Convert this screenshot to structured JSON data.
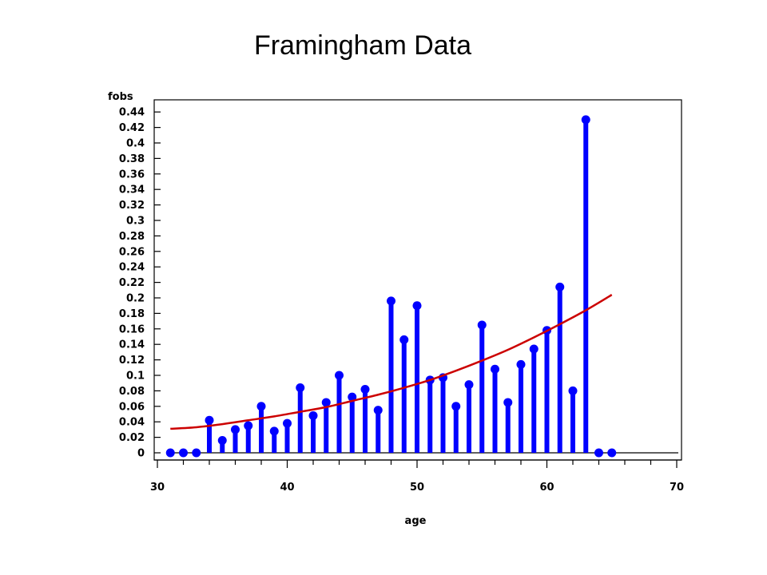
{
  "chart_data": {
    "type": "scatter",
    "title": "Framingham Data",
    "xlabel": "age",
    "ylabel": "fobs",
    "xlim": [
      30,
      70
    ],
    "ylim": [
      0,
      0.45
    ],
    "xticks": [
      "30",
      "40",
      "50",
      "60",
      "70"
    ],
    "yticks": [
      "0",
      "0.02",
      "0.04",
      "0.06",
      "0.08",
      "0.1",
      "0.12",
      "0.14",
      "0.16",
      "0.18",
      "0.2",
      "0.22",
      "0.24",
      "0.26",
      "0.28",
      "0.3",
      "0.32",
      "0.34",
      "0.36",
      "0.38",
      "0.4",
      "0.42",
      "0.44"
    ],
    "grid": false,
    "series": [
      {
        "kind": "needle",
        "color": "#0000ff",
        "x": [
          31,
          32,
          33,
          34,
          35,
          36,
          37,
          38,
          39,
          40,
          41,
          42,
          43,
          44,
          45,
          46,
          47,
          48,
          49,
          50,
          51,
          52,
          53,
          54,
          55,
          56,
          57,
          58,
          59,
          60,
          61,
          62,
          63,
          64,
          65
        ],
        "values": [
          0,
          0,
          0,
          0.042,
          0.016,
          0.03,
          0.035,
          0.06,
          0.028,
          0.038,
          0.084,
          0.048,
          0.065,
          0.1,
          0.072,
          0.082,
          0.055,
          0.196,
          0.146,
          0.19,
          0.094,
          0.097,
          0.06,
          0.088,
          0.165,
          0.108,
          0.065,
          0.114,
          0.134,
          0.158,
          0.214,
          0.08,
          0.43,
          0,
          0
        ]
      },
      {
        "kind": "curve",
        "color": "#cc0000",
        "x": [
          31,
          33,
          35,
          37,
          39,
          41,
          43,
          45,
          47,
          49,
          51,
          53,
          55,
          57,
          59,
          61,
          63,
          65
        ],
        "values": [
          0.031,
          0.033,
          0.037,
          0.042,
          0.047,
          0.053,
          0.059,
          0.067,
          0.075,
          0.084,
          0.094,
          0.106,
          0.119,
          0.133,
          0.149,
          0.166,
          0.184,
          0.204
        ]
      }
    ]
  }
}
